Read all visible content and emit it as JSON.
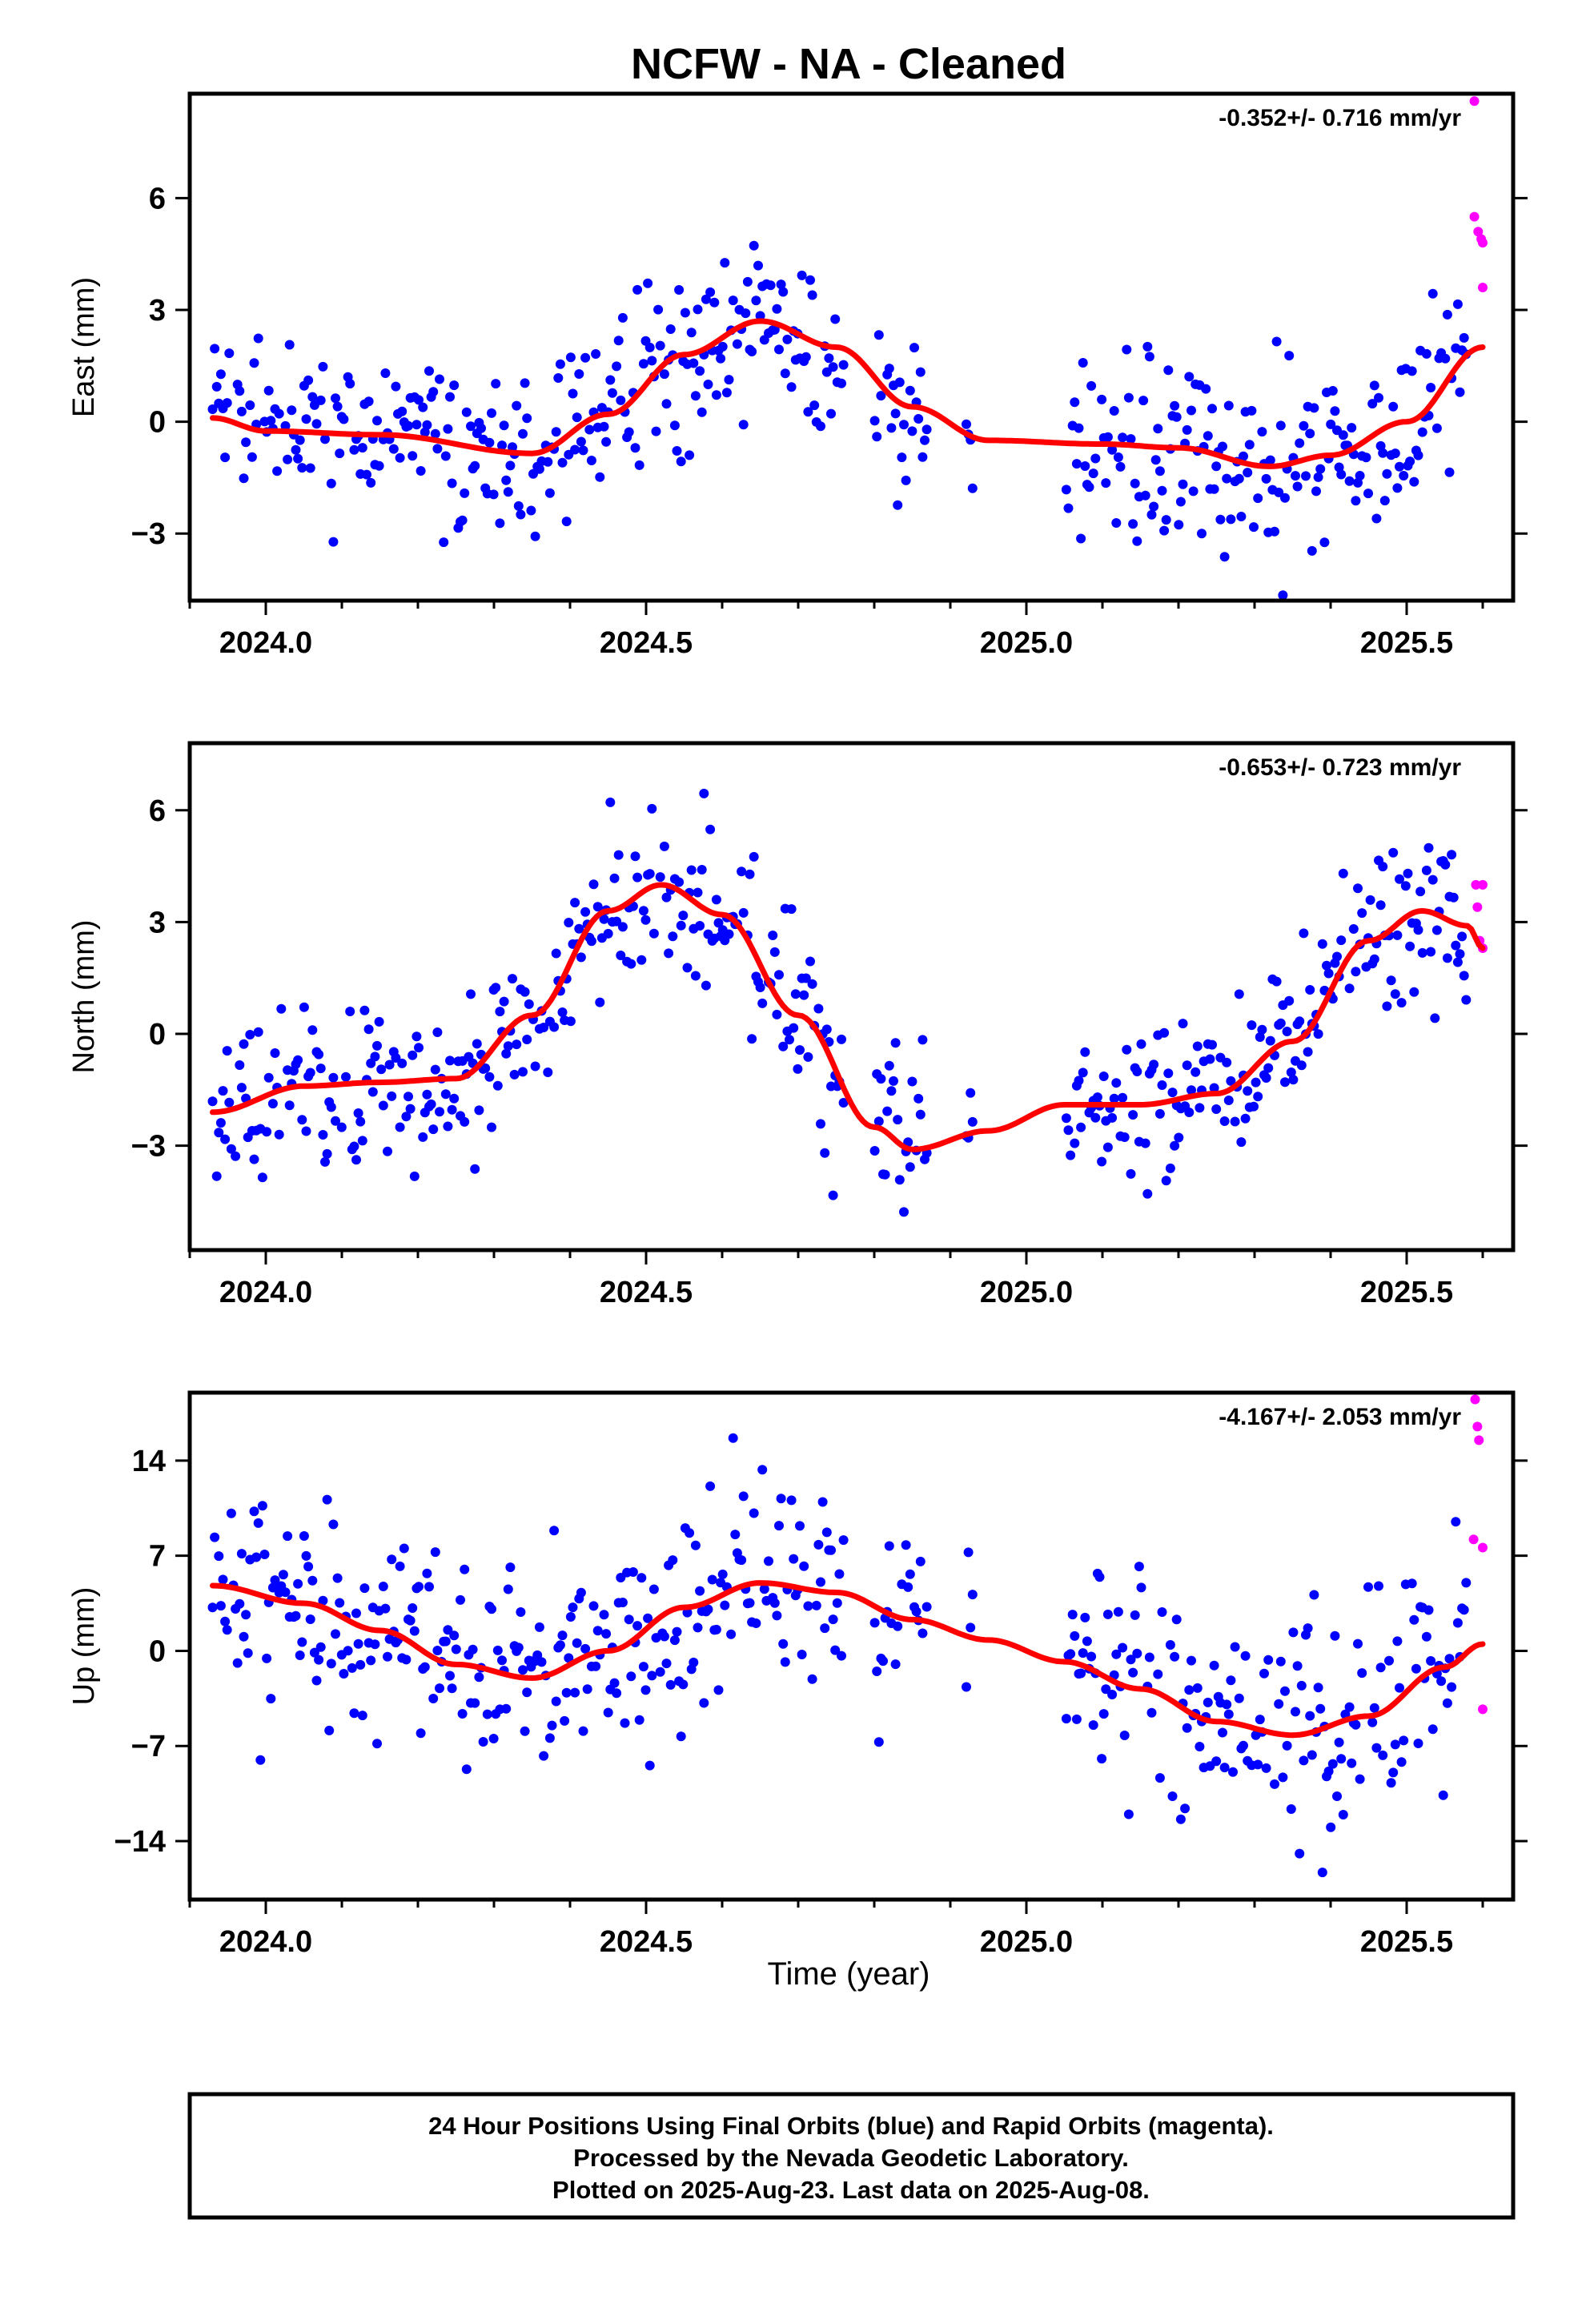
{
  "title": "NCFW  - NA - Cleaned",
  "x_axis_label": "Time (year)",
  "footer": {
    "lines": [
      "24 Hour Positions Using Final Orbits (blue) and Rapid Orbits (magenta).",
      "Processed by the Nevada Geodetic Laboratory.",
      "Plotted on 2025-Aug-23. Last data on 2025-Aug-08."
    ]
  },
  "colors": {
    "final_orbits": "#0000ff",
    "rapid_orbits": "#ff00ff",
    "trend": "#ff0000",
    "frame": "#000000"
  },
  "chart_data": [
    {
      "type": "scatter",
      "ylabel": "East (mm)",
      "rate_label": "-0.352+/- 0.716 mm/yr",
      "xlim": [
        2023.9,
        2025.64
      ],
      "ylim": [
        -4.8,
        8.8
      ],
      "xticks": [
        2024.0,
        2024.5,
        2025.0,
        2025.5
      ],
      "xtick_labels": [
        "2024.0",
        "2024.5",
        "2025.0",
        "2025.5"
      ],
      "yticks": [
        -3,
        0,
        3,
        6
      ],
      "ytick_labels": [
        "−3",
        "0",
        "3",
        "6"
      ],
      "series": [
        {
          "name": "Final Orbits",
          "color": "#0000ff",
          "gaps": [
            [
              2024.76,
              2024.8
            ],
            [
              2024.87,
              2024.92
            ],
            [
              2024.93,
              2025.05
            ]
          ],
          "x_range": [
            2023.93,
            2025.58
          ]
        },
        {
          "name": "Rapid Orbits",
          "color": "#ff00ff",
          "points": [
            [
              2025.589,
              8.6
            ],
            [
              2025.589,
              5.5
            ],
            [
              2025.594,
              5.1
            ],
            [
              2025.598,
              4.9
            ],
            [
              2025.6,
              4.8
            ],
            [
              2025.6,
              3.6
            ]
          ]
        },
        {
          "name": "Trend",
          "color": "#ff0000",
          "fit": [
            [
              2023.93,
              0.1
            ],
            [
              2024.0,
              -0.25
            ],
            [
              2024.15,
              -0.35
            ],
            [
              2024.35,
              -0.85
            ],
            [
              2024.45,
              0.2
            ],
            [
              2024.55,
              1.8
            ],
            [
              2024.65,
              2.7
            ],
            [
              2024.75,
              2.0
            ],
            [
              2024.85,
              0.4
            ],
            [
              2024.95,
              -0.5
            ],
            [
              2025.1,
              -0.6
            ],
            [
              2025.2,
              -0.7
            ],
            [
              2025.32,
              -1.2
            ],
            [
              2025.4,
              -0.9
            ],
            [
              2025.5,
              0.0
            ],
            [
              2025.6,
              2.0
            ]
          ]
        }
      ]
    },
    {
      "type": "scatter",
      "ylabel": "North (mm)",
      "rate_label": "-0.653+/- 0.723 mm/yr",
      "xlim": [
        2023.9,
        2025.64
      ],
      "ylim": [
        -5.8,
        7.8
      ],
      "xticks": [
        2024.0,
        2024.5,
        2025.0,
        2025.5
      ],
      "xtick_labels": [
        "2024.0",
        "2024.5",
        "2025.0",
        "2025.5"
      ],
      "yticks": [
        -3,
        0,
        3,
        6
      ],
      "ytick_labels": [
        "−3",
        "0",
        "3",
        "6"
      ],
      "series": [
        {
          "name": "Final Orbits",
          "color": "#0000ff",
          "gaps": [
            [
              2024.76,
              2024.8
            ],
            [
              2024.87,
              2024.92
            ],
            [
              2024.93,
              2025.05
            ]
          ],
          "x_range": [
            2023.93,
            2025.58
          ]
        },
        {
          "name": "Rapid Orbits",
          "color": "#ff00ff",
          "points": [
            [
              2025.591,
              4.0
            ],
            [
              2025.593,
              3.4
            ],
            [
              2025.596,
              2.5
            ],
            [
              2025.6,
              2.3
            ],
            [
              2025.6,
              4.0
            ]
          ]
        },
        {
          "name": "Trend",
          "color": "#ff0000",
          "fit": [
            [
              2023.93,
              -2.1
            ],
            [
              2024.05,
              -1.4
            ],
            [
              2024.15,
              -1.3
            ],
            [
              2024.25,
              -1.2
            ],
            [
              2024.35,
              0.5
            ],
            [
              2024.45,
              3.3
            ],
            [
              2024.52,
              4.0
            ],
            [
              2024.6,
              3.2
            ],
            [
              2024.7,
              0.5
            ],
            [
              2024.8,
              -2.5
            ],
            [
              2024.85,
              -3.1
            ],
            [
              2024.95,
              -2.6
            ],
            [
              2025.05,
              -1.9
            ],
            [
              2025.15,
              -1.9
            ],
            [
              2025.25,
              -1.6
            ],
            [
              2025.35,
              -0.2
            ],
            [
              2025.45,
              2.5
            ],
            [
              2025.52,
              3.3
            ],
            [
              2025.58,
              2.9
            ],
            [
              2025.6,
              2.3
            ]
          ]
        }
      ]
    },
    {
      "type": "scatter",
      "ylabel": "Up (mm)",
      "rate_label": "-4.167+/- 2.053 mm/yr",
      "xlim": [
        2023.9,
        2025.64
      ],
      "ylim": [
        -18.3,
        19.0
      ],
      "xticks": [
        2024.0,
        2024.5,
        2025.0,
        2025.5
      ],
      "xtick_labels": [
        "2024.0",
        "2024.5",
        "2025.0",
        "2025.5"
      ],
      "yticks": [
        -14,
        -7,
        0,
        7,
        14
      ],
      "ytick_labels": [
        "−14",
        "−7",
        "0",
        "7",
        "14"
      ],
      "series": [
        {
          "name": "Final Orbits",
          "color": "#0000ff",
          "gaps": [
            [
              2024.76,
              2024.8
            ],
            [
              2024.87,
              2024.92
            ],
            [
              2024.93,
              2025.05
            ]
          ],
          "x_range": [
            2023.93,
            2025.58
          ]
        },
        {
          "name": "Rapid Orbits",
          "color": "#ff00ff",
          "points": [
            [
              2025.59,
              18.5
            ],
            [
              2025.593,
              16.5
            ],
            [
              2025.595,
              15.5
            ],
            [
              2025.588,
              8.2
            ],
            [
              2025.6,
              7.6
            ],
            [
              2025.6,
              -4.3
            ]
          ]
        },
        {
          "name": "Trend",
          "color": "#ff0000",
          "fit": [
            [
              2023.93,
              4.8
            ],
            [
              2024.05,
              3.5
            ],
            [
              2024.15,
              1.5
            ],
            [
              2024.25,
              -1.0
            ],
            [
              2024.35,
              -2.0
            ],
            [
              2024.45,
              0.0
            ],
            [
              2024.55,
              3.2
            ],
            [
              2024.65,
              5.0
            ],
            [
              2024.75,
              4.3
            ],
            [
              2024.85,
              2.3
            ],
            [
              2024.95,
              0.8
            ],
            [
              2025.05,
              -0.8
            ],
            [
              2025.15,
              -2.8
            ],
            [
              2025.25,
              -5.2
            ],
            [
              2025.35,
              -6.2
            ],
            [
              2025.45,
              -4.8
            ],
            [
              2025.55,
              -1.2
            ],
            [
              2025.6,
              0.5
            ]
          ]
        }
      ]
    }
  ]
}
